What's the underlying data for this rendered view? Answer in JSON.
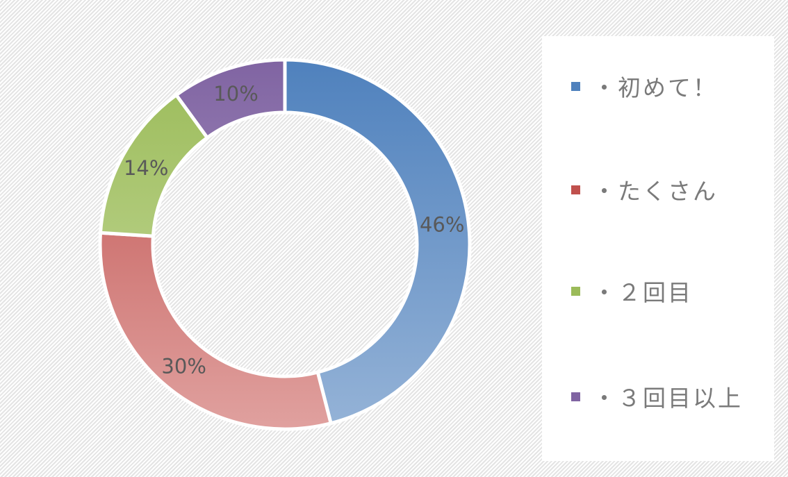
{
  "chart_data": {
    "type": "donut",
    "categories": [
      "・初めて！",
      "・たくさん",
      "・２回目",
      "・３回目以上"
    ],
    "values": [
      46,
      30,
      14,
      10
    ],
    "data_labels": [
      "46%",
      "30%",
      "14%",
      "10%"
    ],
    "colors": [
      "#4f81bd",
      "#c0504d",
      "#9bbb59",
      "#8064a2"
    ],
    "colors_light": [
      "#95b3d7",
      "#e0a19f",
      "#c8dca0",
      "#b7a8cf"
    ],
    "legend_position": "right",
    "start_angle": "top, clockwise"
  }
}
